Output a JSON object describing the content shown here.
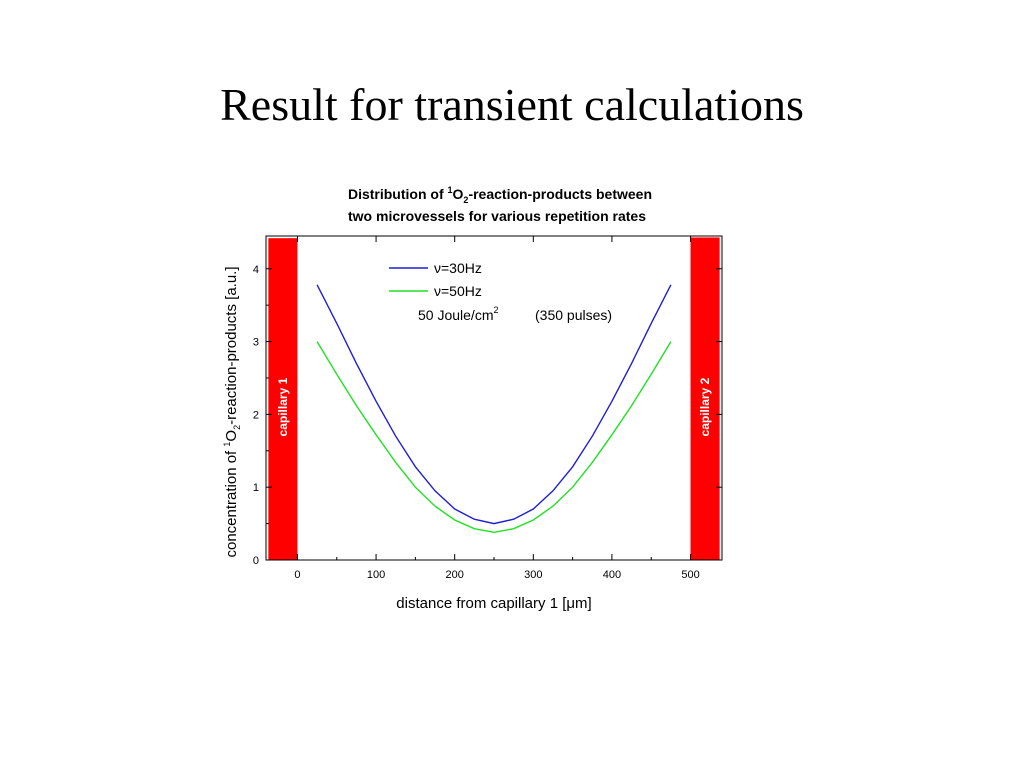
{
  "slide": {
    "title": "Result for transient calculations"
  },
  "chart_data": {
    "type": "line",
    "title_line1_before": "Distribution of ",
    "title_sup": "1",
    "title_line1_o": "O",
    "title_sub": "2",
    "title_line1_after": "-reaction-products between",
    "title_line2": "two microvessels for various repetition rates",
    "xlabel_before": "distance from capillary 1  [",
    "xlabel_mu": "μ",
    "xlabel_after": "m]",
    "ylabel_before": "concentration of ",
    "ylabel_sup": "1",
    "ylabel_o": "O",
    "ylabel_sub": "2",
    "ylabel_after": "-reaction-products [a.u.]",
    "xlim": [
      -40,
      540
    ],
    "ylim": [
      0,
      4.45
    ],
    "xticks": [
      0,
      100,
      200,
      300,
      400,
      500
    ],
    "yticks": [
      0,
      1,
      2,
      3,
      4
    ],
    "x": [
      25,
      50,
      75,
      100,
      125,
      150,
      175,
      200,
      225,
      250,
      275,
      300,
      325,
      350,
      375,
      400,
      425,
      450,
      475
    ],
    "series": [
      {
        "name_nu": "ν",
        "name_rest": "=30Hz",
        "color": "#1f1fd0",
        "values": [
          3.78,
          3.25,
          2.7,
          2.18,
          1.7,
          1.28,
          0.95,
          0.7,
          0.56,
          0.5,
          0.56,
          0.7,
          0.95,
          1.28,
          1.7,
          2.18,
          2.7,
          3.25,
          3.78
        ]
      },
      {
        "name_nu": "ν",
        "name_rest": "=50Hz",
        "color": "#22e022",
        "values": [
          3.0,
          2.55,
          2.12,
          1.72,
          1.34,
          1.0,
          0.74,
          0.55,
          0.43,
          0.38,
          0.43,
          0.55,
          0.74,
          1.0,
          1.34,
          1.72,
          2.12,
          2.55,
          3.0
        ]
      }
    ],
    "annotation_energy": "50 Joule/cm",
    "annotation_energy_sup": "2",
    "annotation_pulses": "(350 pulses)",
    "capillaries": [
      {
        "label": "capillary 1",
        "x_from": -37,
        "x_to": 0,
        "y_top": 4.42,
        "color": "#ff0000"
      },
      {
        "label": "capillary 2",
        "x_from": 500,
        "x_to": 537,
        "y_top": 4.43,
        "color": "#ff0000"
      }
    ]
  }
}
